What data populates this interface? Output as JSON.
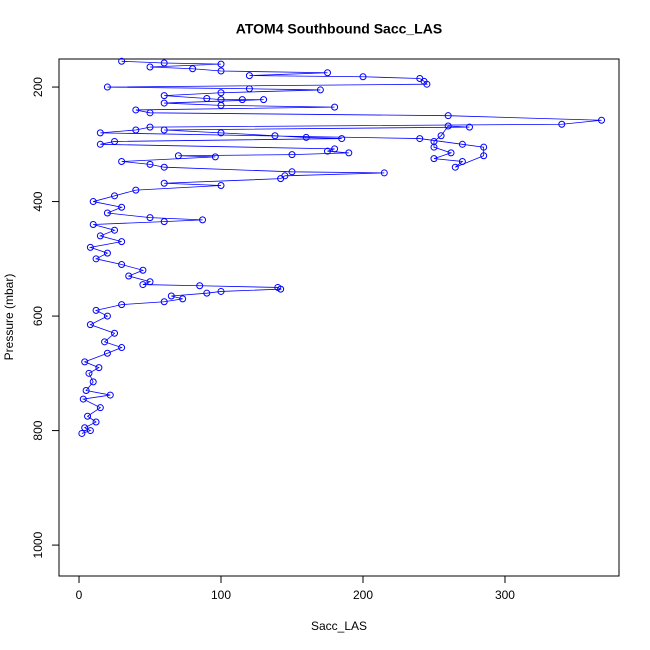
{
  "chart_data": {
    "type": "line",
    "title": "ATOM4 Southbound Sacc_LAS",
    "x_label": "Sacc_LAS",
    "y_label": "Pressure (mbar)",
    "color": "#0000ff",
    "xlim": [
      -14.1,
      380.3
    ],
    "xticks": [
      0,
      100,
      200,
      300
    ],
    "ylim": [
      1054,
      151
    ],
    "yticks": [
      200,
      400,
      600,
      800,
      1000
    ],
    "x": [
      2,
      8,
      4,
      12,
      6,
      15,
      3,
      22,
      5,
      10,
      7,
      14,
      4,
      20,
      30,
      18,
      25,
      8,
      20,
      12,
      30,
      60,
      73,
      65,
      90,
      100,
      142,
      140,
      85,
      45,
      50,
      35,
      45,
      30,
      12,
      20,
      8,
      30,
      15,
      25,
      10,
      60,
      87,
      50,
      20,
      30,
      10,
      25,
      40,
      100,
      60,
      142,
      145,
      215,
      150,
      60,
      50,
      30,
      96,
      70,
      150,
      190,
      175,
      180,
      15,
      25,
      185,
      160,
      138,
      100,
      60,
      275,
      260,
      255,
      250,
      250,
      262,
      250,
      270,
      265,
      285,
      285,
      270,
      240,
      15,
      40,
      50,
      340,
      368,
      260,
      50,
      40,
      180,
      100,
      60,
      130,
      115,
      100,
      90,
      60,
      100,
      170,
      120,
      20,
      245,
      243,
      240,
      200,
      120,
      175,
      100,
      80,
      50,
      100,
      60,
      30
    ],
    "values": [
      805,
      800,
      795,
      785,
      775,
      760,
      745,
      738,
      730,
      715,
      700,
      690,
      680,
      665,
      655,
      645,
      630,
      615,
      600,
      590,
      580,
      575,
      570,
      565,
      560,
      557,
      553,
      550,
      547,
      545,
      540,
      530,
      520,
      510,
      500,
      490,
      480,
      470,
      460,
      450,
      440,
      435,
      432,
      428,
      420,
      410,
      400,
      390,
      380,
      372,
      368,
      360,
      355,
      350,
      348,
      340,
      335,
      330,
      322,
      320,
      318,
      315,
      312,
      308,
      300,
      295,
      290,
      288,
      285,
      280,
      275,
      270,
      268,
      285,
      295,
      305,
      315,
      325,
      330,
      340,
      320,
      305,
      300,
      290,
      280,
      275,
      270,
      265,
      258,
      250,
      245,
      240,
      235,
      232,
      228,
      222,
      222,
      222,
      220,
      215,
      210,
      205,
      203,
      200,
      195,
      190,
      185,
      182,
      180,
      175,
      172,
      168,
      165,
      160,
      158,
      155
    ]
  }
}
